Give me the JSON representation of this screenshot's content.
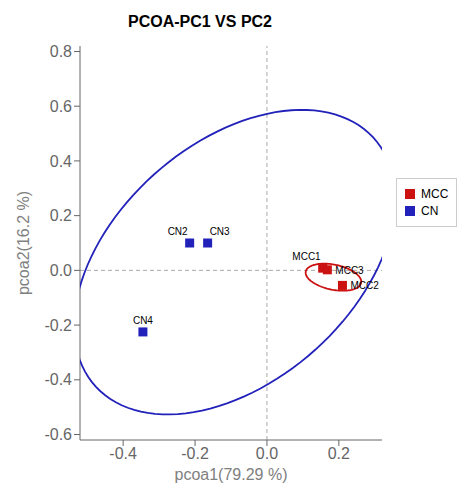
{
  "chart_data": {
    "type": "scatter",
    "title": "PCOA-PC1 VS PC2",
    "xlabel": "pcoa1(79.29 %)",
    "ylabel": "pcoa2(16.2 %)",
    "xlim": [
      -0.52,
      0.32
    ],
    "ylim": [
      -0.62,
      0.82
    ],
    "xticks": [
      -0.4,
      -0.2,
      {
        "value": 0,
        "label": "0.0"
      },
      0.2
    ],
    "yticks": [
      -0.6,
      -0.4,
      -0.2,
      {
        "value": 0,
        "label": "0.0"
      },
      0.2,
      0.4,
      0.6,
      0.8
    ],
    "grid": false,
    "legend": "right",
    "marker": "square",
    "crosshair": {
      "x": 0,
      "y": 0
    },
    "series": [
      {
        "name": "MCC",
        "color": "#cc1111",
        "values": [
          {
            "x": 0.155,
            "y": 0.008,
            "label": "MCC1"
          },
          {
            "x": 0.168,
            "y": 0.002,
            "label": "MCC3"
          },
          {
            "x": 0.21,
            "y": -0.055,
            "label": "MCC2"
          }
        ],
        "ellipse": {
          "cx": 0.185,
          "cy": -0.025,
          "width": 0.16,
          "height": 0.09,
          "angle": -18
        }
      },
      {
        "name": "CN",
        "color": "#2222bb",
        "values": [
          {
            "x": -0.215,
            "y": 0.1,
            "label": "CN2"
          },
          {
            "x": -0.165,
            "y": 0.1,
            "label": "CN3"
          },
          {
            "x": -0.345,
            "y": -0.225,
            "label": "CN4"
          }
        ],
        "ellipse": {
          "cx": -0.09,
          "cy": 0.03,
          "width": 0.74,
          "height": 1.22,
          "angle": -31
        }
      }
    ]
  }
}
